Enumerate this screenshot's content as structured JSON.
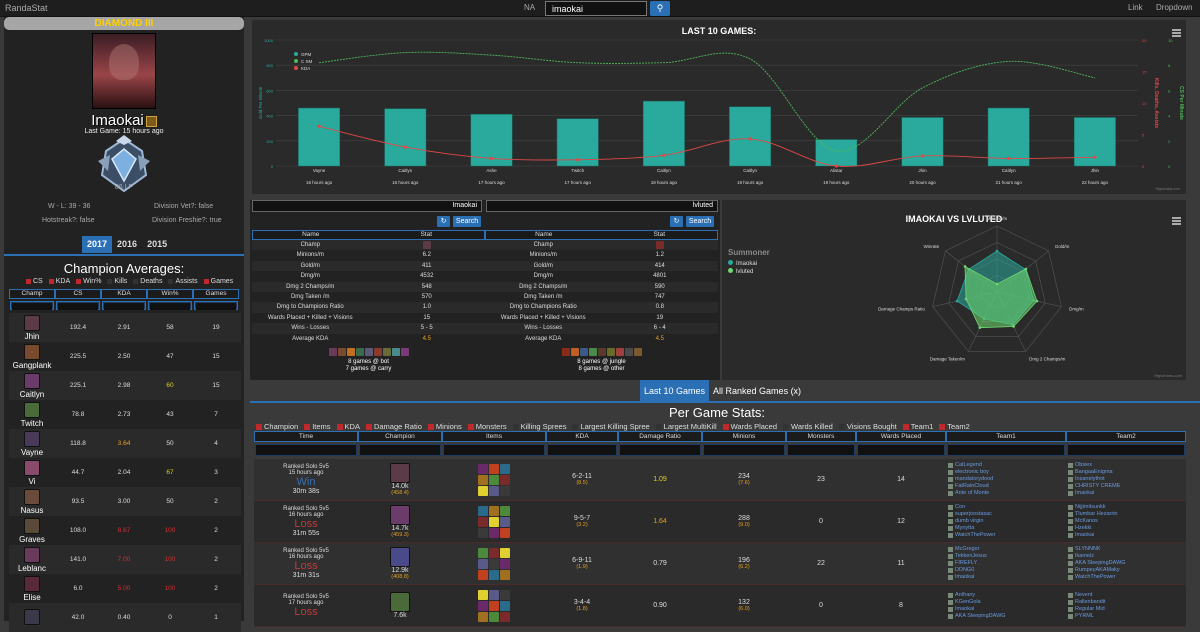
{
  "topbar": {
    "brand": "RandaStat",
    "region": "NA",
    "search_value": "imaokai",
    "link": "Link",
    "dropdown": "Dropdown"
  },
  "summoner": {
    "rank": "DIAMOND III",
    "name": "Imaokai",
    "last_game": "Last Game: 15 hours ago",
    "lp": "86 LP",
    "wl": "W - L: 39 - 36",
    "division_vet": "Division Vet?: false",
    "hotstreak": "Hotstreak?: false",
    "division_freshie": "Division Freshie?: true",
    "years": [
      "2017",
      "2016",
      "2015"
    ],
    "active_year": "2017"
  },
  "champion_averages": {
    "title": "Champion Averages:",
    "legend": [
      "CS",
      "KDA",
      "Win%",
      "Kills",
      "Deaths",
      "Assists",
      "Games"
    ],
    "legend_colors": [
      "#c0282c",
      "#c0282c",
      "#c0282c",
      "#333333",
      "#333333",
      "#333333",
      "#c0282c"
    ],
    "columns": [
      "Champ",
      "CS",
      "KDA",
      "Win%",
      "Games"
    ],
    "rows": [
      {
        "champ": "Jhin",
        "cs": "192.4",
        "kda": "2.91",
        "win": "58",
        "games": "19",
        "kda_color": "#dddddd",
        "win_color": "#dddddd",
        "icon": "#5a3b47"
      },
      {
        "champ": "Gangplank",
        "cs": "225.5",
        "kda": "2.50",
        "win": "47",
        "games": "15",
        "kda_color": "#dddddd",
        "win_color": "#dddddd",
        "icon": "#7a4a2e"
      },
      {
        "champ": "Caitlyn",
        "cs": "225.1",
        "kda": "2.98",
        "win": "60",
        "games": "15",
        "kda_color": "#dddddd",
        "win_color": "#e0d020",
        "icon": "#6b3c6a"
      },
      {
        "champ": "Twitch",
        "cs": "78.8",
        "kda": "2.73",
        "win": "43",
        "games": "7",
        "kda_color": "#dddddd",
        "win_color": "#dddddd",
        "icon": "#4a6a3a"
      },
      {
        "champ": "Vayne",
        "cs": "118.8",
        "kda": "3.64",
        "win": "50",
        "games": "4",
        "kda_color": "#e8a020",
        "win_color": "#dddddd",
        "icon": "#4a3a5a"
      },
      {
        "champ": "Vi",
        "cs": "44.7",
        "kda": "2.04",
        "win": "67",
        "games": "3",
        "kda_color": "#dddddd",
        "win_color": "#e0d020",
        "icon": "#8a4a6a"
      },
      {
        "champ": "Nasus",
        "cs": "93.5",
        "kda": "3.00",
        "win": "50",
        "games": "2",
        "kda_color": "#dddddd",
        "win_color": "#dddddd",
        "icon": "#6a4a3a"
      },
      {
        "champ": "Graves",
        "cs": "108.0",
        "kda": "8.67",
        "win": "100",
        "games": "2",
        "kda_color": "#d23030",
        "win_color": "#d23030",
        "icon": "#5a4a3a"
      },
      {
        "champ": "Leblanc",
        "cs": "141.0",
        "kda": "7.00",
        "win": "100",
        "games": "2",
        "kda_color": "#d23030",
        "win_color": "#d23030",
        "icon": "#6a3a5a"
      },
      {
        "champ": "Elise",
        "cs": "6.0",
        "kda": "5.00",
        "win": "100",
        "games": "2",
        "kda_color": "#d23030",
        "win_color": "#d23030",
        "icon": "#5a2a3a"
      },
      {
        "champ": "",
        "cs": "42.0",
        "kda": "0.40",
        "win": "0",
        "games": "1",
        "kda_color": "#dddddd",
        "win_color": "#dddddd",
        "icon": "#3a3a4a"
      }
    ]
  },
  "last10": {
    "title": "LAST 10 GAMES:",
    "legend": [
      "GPM",
      "C SM",
      "KDA"
    ],
    "yleft_label": "Gold Per Minute",
    "yright1_label": "Kills, Deaths, Assists",
    "yright2_label": "CS Per Minute",
    "credit": "Highcharts.com",
    "colors": {
      "bar": "#2aaa9c",
      "cs_line": "#4fb85a",
      "kda_line": "#e04848"
    },
    "chart_data": {
      "type": "bar",
      "title": "LAST 10 GAMES:",
      "categories": [
        "Vayne",
        "Caitlyn",
        "Ashe",
        "Twitch",
        "Caitlyn",
        "Caitlyn",
        "Alistar",
        "Jhin",
        "Caitlyn",
        "Jhin"
      ],
      "x_times": [
        "16 hours ago",
        "16 hours ago",
        "17 hours ago",
        "17 hours ago",
        "18 hours ago",
        "19 hours ago",
        "19 hours ago",
        "20 hours ago",
        "21 hours ago",
        "22 hours ago"
      ],
      "ylim_left": [
        0,
        1000
      ],
      "yticks_left": [
        "0",
        "200",
        "400",
        "600",
        "800",
        "1000"
      ],
      "ylim_kda": [
        0,
        20
      ],
      "yticks_kda": [
        "0",
        "5",
        "10",
        "15",
        "20"
      ],
      "ylim_cs": [
        0,
        10
      ],
      "yticks_cs": [
        "0",
        "2",
        "4",
        "6",
        "8",
        "10"
      ],
      "series": [
        {
          "name": "GPM",
          "values": [
            460,
            455,
            410,
            375,
            515,
            470,
            210,
            385,
            460,
            385
          ]
        },
        {
          "name": "C SM",
          "values": [
            8.2,
            9.0,
            8.8,
            8.2,
            8.2,
            8.5,
            1.2,
            6.2,
            8.3,
            7.0
          ]
        },
        {
          "name": "KDA",
          "values": [
            6.3,
            3.0,
            1.2,
            1.0,
            1.7,
            4.3,
            0.0,
            1.6,
            1.2,
            1.4
          ]
        }
      ]
    }
  },
  "compare": {
    "left": {
      "name": "Imaokai",
      "search": "Search",
      "rows": [
        [
          "Champ",
          ""
        ],
        [
          "Minions/m",
          "6.2"
        ],
        [
          "Gold/m",
          "411"
        ],
        [
          "Dmg/m",
          "4532"
        ],
        [
          "Dmg 2 Champs/m",
          "548"
        ],
        [
          "Dmg Taken /m",
          "570"
        ],
        [
          "Dmg to Champions Ratio",
          "1.0"
        ],
        [
          "Wards Placed + Killed + Visions",
          "15"
        ],
        [
          "Wins - Losses",
          "5 - 5"
        ],
        [
          "Average KDA",
          "4.5"
        ]
      ],
      "lane1": "8 games @ bot",
      "lane2": "7 games @ carry"
    },
    "right": {
      "name": "lvluted",
      "search": "Search",
      "rows": [
        [
          "Champ",
          ""
        ],
        [
          "Minions/m",
          "1.2"
        ],
        [
          "Gold/m",
          "414"
        ],
        [
          "Dmg/m",
          "4801"
        ],
        [
          "Dmg 2 Champs/m",
          "590"
        ],
        [
          "Dmg Taken /m",
          "747"
        ],
        [
          "Dmg to Champions Ratio",
          "0.8"
        ],
        [
          "Wards Placed + Killed + Visions",
          "19"
        ],
        [
          "Wins - Losses",
          "6 - 4"
        ],
        [
          "Average KDA",
          "4.5"
        ]
      ],
      "lane1": "8 games @ jungle",
      "lane2": "8 games @ other"
    },
    "columns": [
      "Name",
      "Stat"
    ]
  },
  "radar": {
    "title": "IMAOKAI VS LVLUTED",
    "legend_title": "Summoner",
    "credit": "Highcharts.com",
    "colors": {
      "a": "#2aaa9c",
      "b": "#6ed86e"
    },
    "chart_data": {
      "type": "radar",
      "title": "IMAOKAI VS LVLUTED",
      "axes": [
        "Minions/m",
        "Gold/m",
        "Dmg/m",
        "Dmg 2 Champs/m",
        "Damage Taken/m",
        "Damage Champs Ratio",
        "Winrate"
      ],
      "series": [
        {
          "name": "Imaokai",
          "values": [
            0.62,
            0.55,
            0.57,
            0.55,
            0.45,
            0.62,
            0.55
          ]
        },
        {
          "name": "lvluted",
          "values": [
            0.12,
            0.56,
            0.62,
            0.58,
            0.6,
            0.48,
            0.62
          ]
        }
      ]
    }
  },
  "tabs": {
    "last10": "Last 10 Games",
    "ranked": "All Ranked Games (x)"
  },
  "per_game": {
    "title": "Per Game Stats:",
    "legend": [
      "Champion",
      "Items",
      "KDA",
      "Damage Ratio",
      "Minions",
      "Monsters",
      "Killing Sprees",
      "Largest Killing Spree",
      "Largest MultiKill",
      "Wards Placed",
      "Wards Killed",
      "Visions Bought",
      "Team1",
      "Team2"
    ],
    "legend_colors": [
      "#c0282c",
      "#c0282c",
      "#c0282c",
      "#c0282c",
      "#c0282c",
      "#c0282c",
      "#333333",
      "#333333",
      "#333333",
      "#c0282c",
      "#333333",
      "#333333",
      "#c0282c",
      "#c0282c"
    ],
    "columns": [
      "Time",
      "Champion",
      "Items",
      "KDA",
      "Damage Ratio",
      "Minions",
      "Monsters",
      "Wards Placed",
      "Team1",
      "Team2"
    ],
    "rows": [
      {
        "queue": "Ranked Solo 5v5",
        "ago": "15 hours ago",
        "result": "Win",
        "duration": "30m 38s",
        "gold": "14.0k",
        "gpm": "(458.4)",
        "kda": "6-2-11",
        "kda_r": "(8.5)",
        "dmg": "1.09",
        "dmg_color": "#e0d020",
        "minions": "234",
        "mpm": "(7.6)",
        "monsters": "23",
        "wards": "14",
        "champ_icon": "#5a3b47",
        "team1": [
          "CatLegend",
          "electronic boy",
          "mandatorydood",
          "FatRainCloud",
          "Ante of Monte"
        ],
        "team2": [
          "Obsiex",
          "BangaaEnigma",
          "Insanelythot",
          "CHRISTY CREME",
          "Imaokai"
        ]
      },
      {
        "queue": "Ranked Solo 5v5",
        "ago": "16 hours ago",
        "result": "Loss",
        "duration": "31m 55s",
        "gold": "14.7k",
        "gpm": "(459.3)",
        "kda": "9-5-7",
        "kda_r": "(3.2)",
        "dmg": "1.64",
        "dmg_color": "#e8a020",
        "minions": "288",
        "mpm": "(9.0)",
        "monsters": "0",
        "wards": "12",
        "champ_icon": "#6b3c6a",
        "team1": [
          "Con",
          "superjoostasac",
          "dumb virgin",
          "Mynytta",
          "WatchThePower"
        ],
        "team2": [
          "Nijjimitsunkk",
          "Tlumbar Hezarrin",
          "McKanos",
          "Hzekki",
          "Imaokai"
        ]
      },
      {
        "queue": "Ranked Solo 5v5",
        "ago": "16 hours ago",
        "result": "Loss",
        "duration": "31m 31s",
        "gold": "12.9k",
        "gpm": "(408.8)",
        "kda": "6-9-11",
        "kda_r": "(1.9)",
        "dmg": "0.79",
        "dmg_color": "#dddddd",
        "minions": "196",
        "mpm": "(6.2)",
        "monsters": "22",
        "wards": "11",
        "champ_icon": "#4a4a8a",
        "team1": [
          "McGregor",
          "TekkenJesus",
          "FIREFLY",
          "DDNG0",
          "Imaokai"
        ],
        "team2": [
          "SLYNNNK",
          "Ikamelz",
          "AKA SleepingDAWG",
          "RumpeyAKAMaky",
          "WatchThePower"
        ]
      },
      {
        "queue": "Ranked Solo 5v5",
        "ago": "17 hours ago",
        "result": "Loss",
        "duration": "",
        "gold": "7.6k",
        "gpm": "",
        "kda": "3-4-4",
        "kda_r": "(1.8)",
        "dmg": "0.90",
        "dmg_color": "#dddddd",
        "minions": "132",
        "mpm": "(6.0)",
        "monsters": "0",
        "wards": "8",
        "champ_icon": "#4a6a3a",
        "team1": [
          "Anthany",
          "KGenGola",
          "Imaokai",
          "AKA SleepingDAWG",
          ""
        ],
        "team2": [
          "Nevent",
          "Rallenbandit",
          "Regular Mid",
          "PYRML",
          ""
        ]
      }
    ]
  }
}
